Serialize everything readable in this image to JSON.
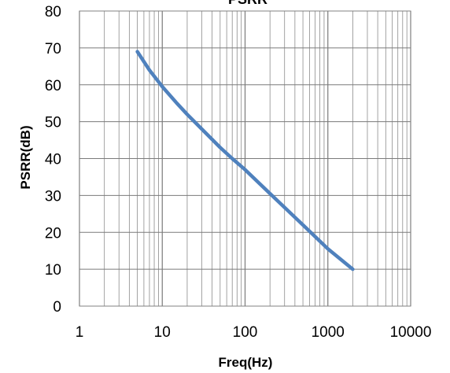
{
  "chart_data": {
    "type": "line",
    "title": "PSRR",
    "xlabel": "Freq(Hz)",
    "ylabel": "PSRR(dB)",
    "x_scale": "log",
    "xlim": [
      1,
      10000
    ],
    "ylim": [
      0,
      80
    ],
    "x_ticks": [
      "1",
      "10",
      "100",
      "1000",
      "10000"
    ],
    "y_ticks": [
      "0",
      "10",
      "20",
      "30",
      "40",
      "50",
      "60",
      "70",
      "80"
    ],
    "grid": true,
    "legend": "none",
    "series": [
      {
        "color": "#4f81bd",
        "x": [
          5,
          7,
          10,
          15,
          20,
          30,
          50,
          70,
          100,
          200,
          500,
          1000,
          2000
        ],
        "y": [
          69,
          64,
          59.5,
          55,
          52,
          48,
          43,
          40,
          37,
          30.5,
          22,
          15.5,
          10
        ]
      }
    ]
  }
}
